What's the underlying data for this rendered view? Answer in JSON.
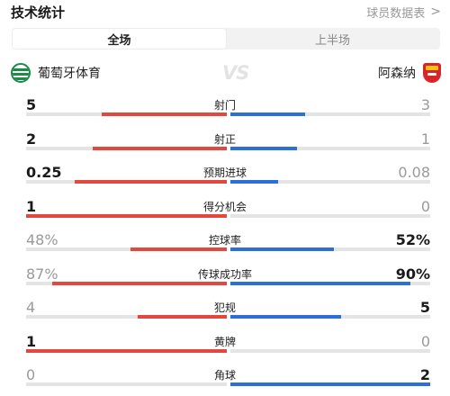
{
  "header": {
    "title": "技术统计",
    "link_label": "球员数据表",
    "link_icon": "chevron-right-icon"
  },
  "tabs": [
    {
      "label": "全场",
      "active": true
    },
    {
      "label": "上半场",
      "active": false
    }
  ],
  "teams": {
    "home": {
      "name": "葡萄牙体育",
      "crest": "sporting-crest",
      "color": "#e2483d"
    },
    "vs": "VS",
    "away": {
      "name": "阿森纳",
      "crest": "arsenal-crest",
      "color": "#2c6fd6"
    }
  },
  "stats": [
    {
      "label": "射门",
      "home": "5",
      "away": "3",
      "home_share": 0.625,
      "away_share": 0.375,
      "home_dim": false,
      "away_dim": true
    },
    {
      "label": "射正",
      "home": "2",
      "away": "1",
      "home_share": 0.667,
      "away_share": 0.333,
      "home_dim": false,
      "away_dim": true
    },
    {
      "label": "预期进球",
      "home": "0.25",
      "away": "0.08",
      "home_share": 0.76,
      "away_share": 0.24,
      "home_dim": false,
      "away_dim": true
    },
    {
      "label": "得分机会",
      "home": "1",
      "away": "0",
      "home_share": 1.0,
      "away_share": 0.0,
      "home_dim": false,
      "away_dim": true
    },
    {
      "label": "控球率",
      "home": "48%",
      "away": "52%",
      "home_share": 0.48,
      "away_share": 0.52,
      "home_dim": true,
      "away_dim": false
    },
    {
      "label": "传球成功率",
      "home": "87%",
      "away": "90%",
      "home_share": 0.87,
      "away_share": 0.9,
      "home_dim": true,
      "away_dim": false
    },
    {
      "label": "犯规",
      "home": "4",
      "away": "5",
      "home_share": 0.444,
      "away_share": 0.556,
      "home_dim": true,
      "away_dim": false
    },
    {
      "label": "黄牌",
      "home": "1",
      "away": "0",
      "home_share": 1.0,
      "away_share": 0.0,
      "home_dim": false,
      "away_dim": true
    },
    {
      "label": "角球",
      "home": "0",
      "away": "2",
      "home_share": 0.0,
      "away_share": 1.0,
      "home_dim": true,
      "away_dim": false
    }
  ]
}
